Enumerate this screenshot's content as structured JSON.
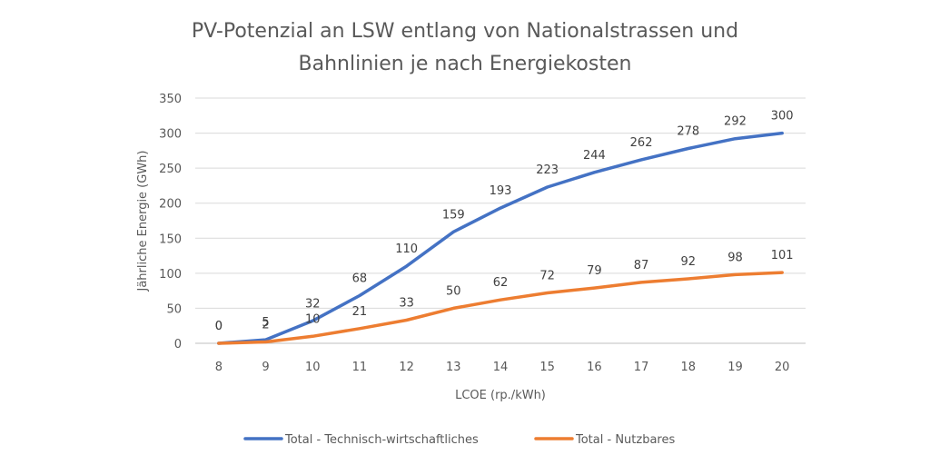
{
  "chart_data": {
    "type": "line",
    "title_lines": [
      "PV-Potenzial an LSW entlang von Nationalstrassen und",
      "Bahnlinien je nach Energiekosten"
    ],
    "xlabel": "LCOE (rp./kWh)",
    "ylabel": "Jährliche Energie (GWh)",
    "x": [
      8,
      9,
      10,
      11,
      12,
      13,
      14,
      15,
      16,
      17,
      18,
      19,
      20
    ],
    "ylim": [
      0,
      350
    ],
    "yticks": [
      0,
      50,
      100,
      150,
      200,
      250,
      300,
      350
    ],
    "grid": true,
    "legend_position": "bottom",
    "series": [
      {
        "name": "Total - Technisch-wirtschaftliches",
        "color": "#4472C4",
        "values": [
          0,
          5,
          32,
          68,
          110,
          159,
          193,
          223,
          244,
          262,
          278,
          292,
          300
        ]
      },
      {
        "name": "Total - Nutzbares",
        "color": "#ED7D31",
        "values": [
          0,
          2,
          10,
          21,
          33,
          50,
          62,
          72,
          79,
          87,
          92,
          98,
          101
        ]
      }
    ]
  }
}
